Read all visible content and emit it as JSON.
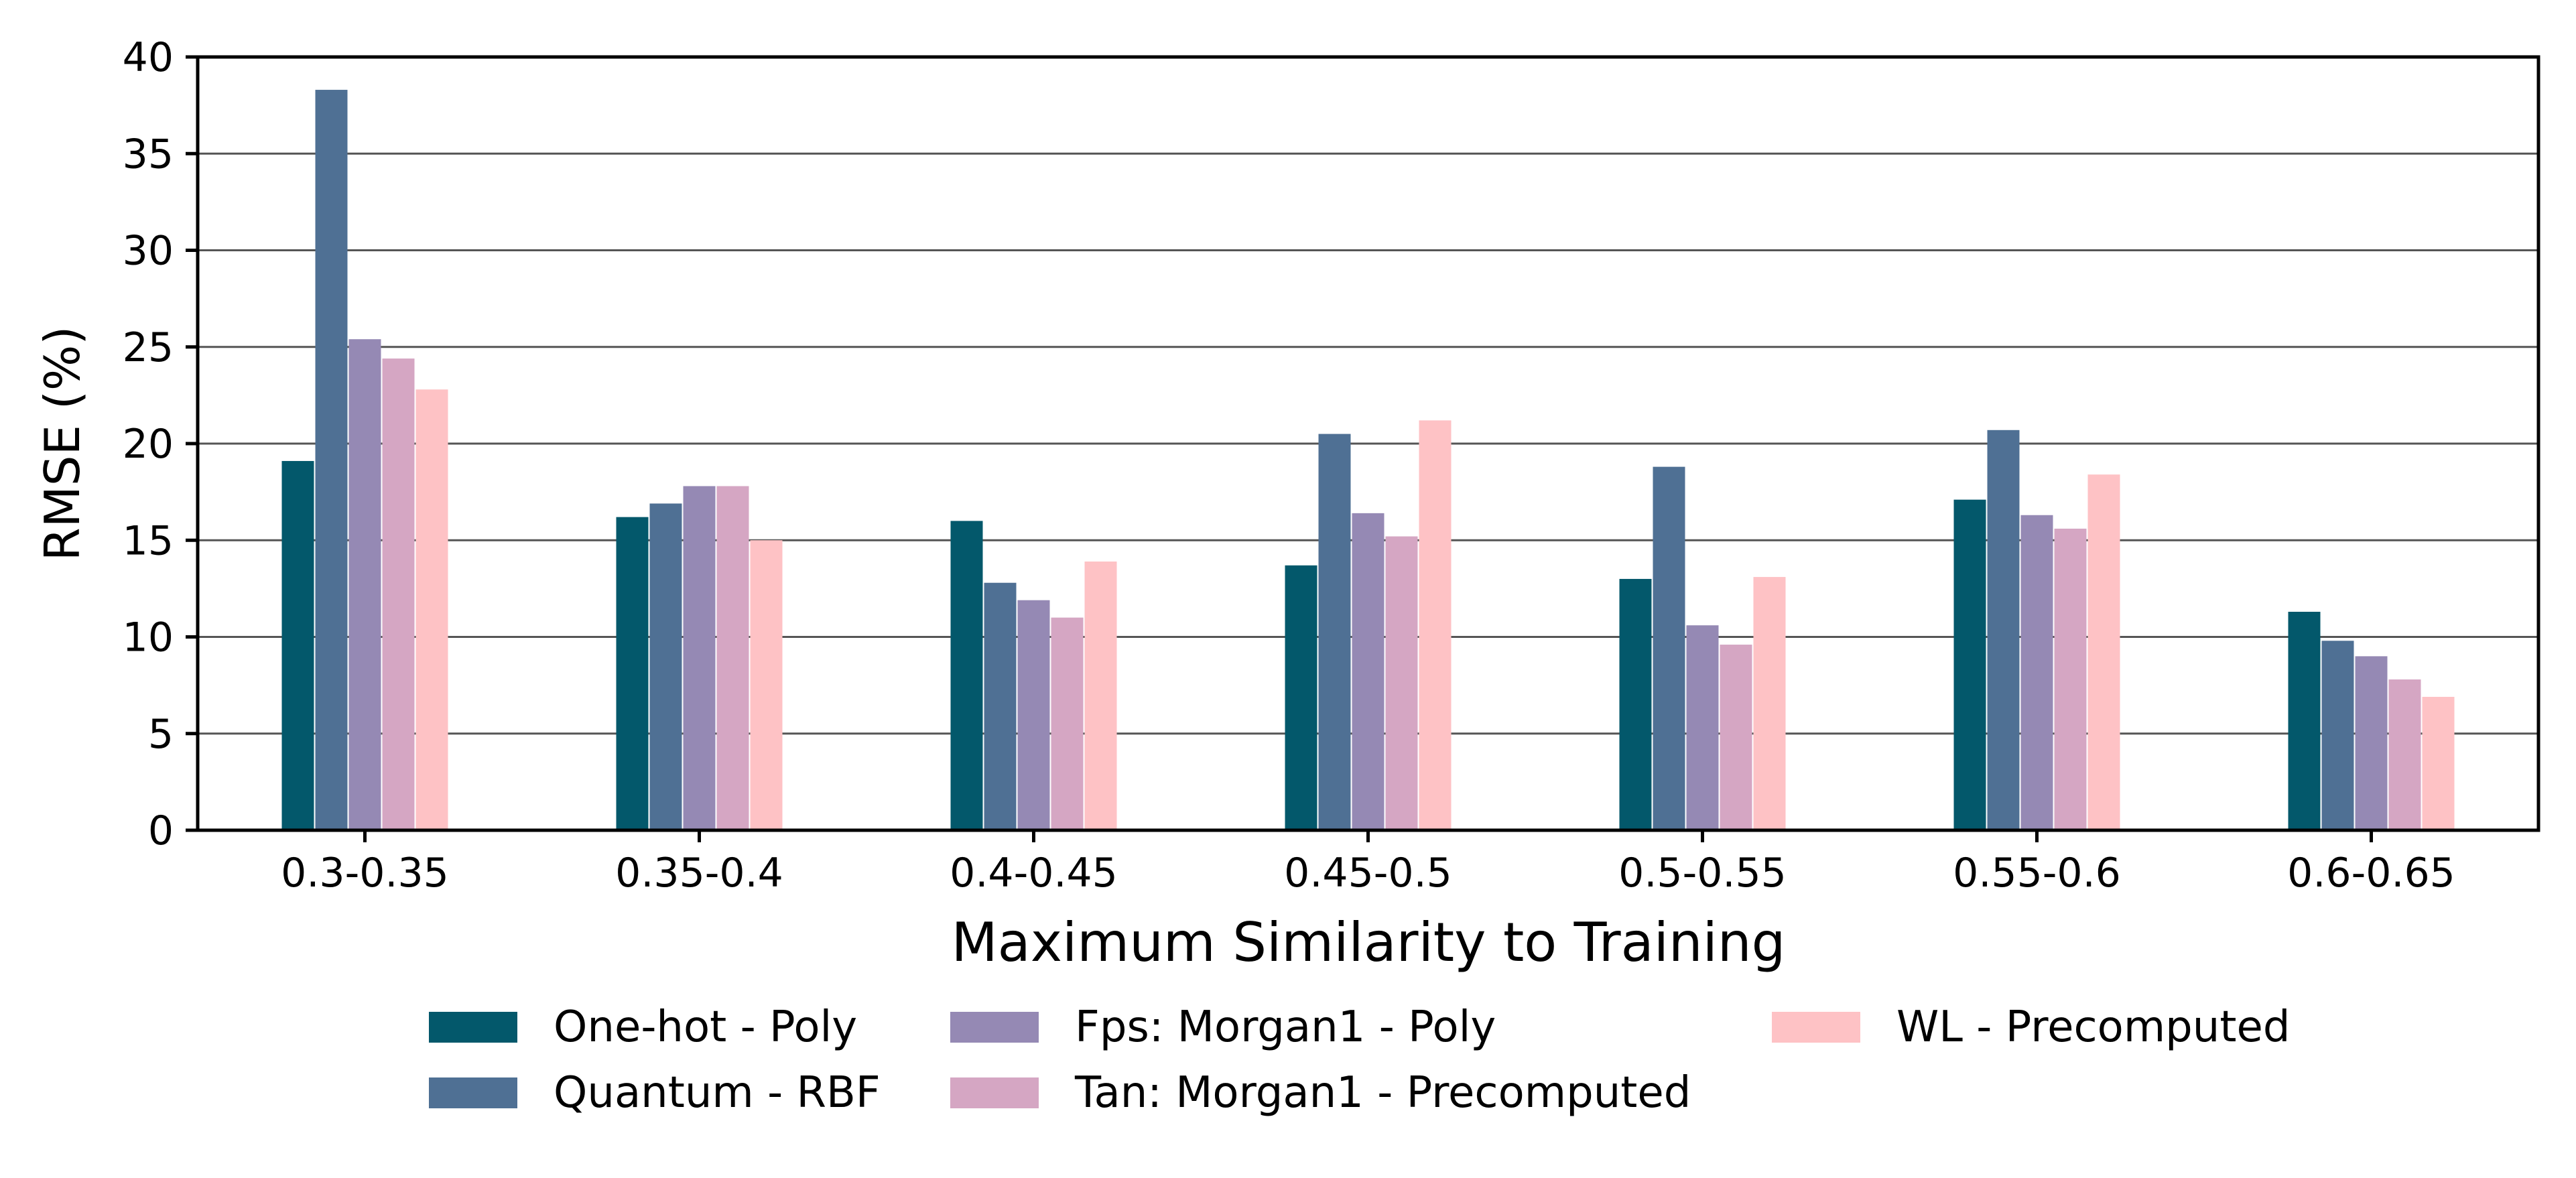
{
  "chart_data": {
    "type": "bar",
    "title": "",
    "xlabel": "Maximum Similarity to Training",
    "ylabel": "RMSE (%)",
    "ylim": [
      0,
      40
    ],
    "yticks": [
      0,
      5,
      10,
      15,
      20,
      25,
      30,
      35,
      40
    ],
    "grid": "horizontal",
    "legend_position": "bottom-center",
    "categories": [
      "0.3-0.35",
      "0.35-0.4",
      "0.4-0.45",
      "0.45-0.5",
      "0.5-0.55",
      "0.55-0.6",
      "0.6-0.65"
    ],
    "series": [
      {
        "name": "One-hot - Poly",
        "color": "#03586b",
        "values": [
          19.1,
          16.2,
          16.0,
          13.7,
          13.0,
          17.1,
          11.3
        ]
      },
      {
        "name": "Quantum - RBF",
        "color": "#4f7094",
        "values": [
          38.3,
          16.9,
          12.8,
          20.5,
          18.8,
          20.7,
          9.8
        ]
      },
      {
        "name": "Fps: Morgan1 - Poly",
        "color": "#9589b4",
        "values": [
          25.4,
          17.8,
          11.9,
          16.4,
          10.6,
          16.3,
          9.0
        ]
      },
      {
        "name": "Tan: Morgan1 - Precomputed",
        "color": "#d5a6c3",
        "values": [
          24.4,
          17.8,
          11.0,
          15.2,
          9.6,
          15.6,
          7.8
        ]
      },
      {
        "name": "WL - Precomputed",
        "color": "#fec2c5",
        "values": [
          22.8,
          15.0,
          13.9,
          21.2,
          13.1,
          18.4,
          6.9
        ]
      }
    ]
  }
}
